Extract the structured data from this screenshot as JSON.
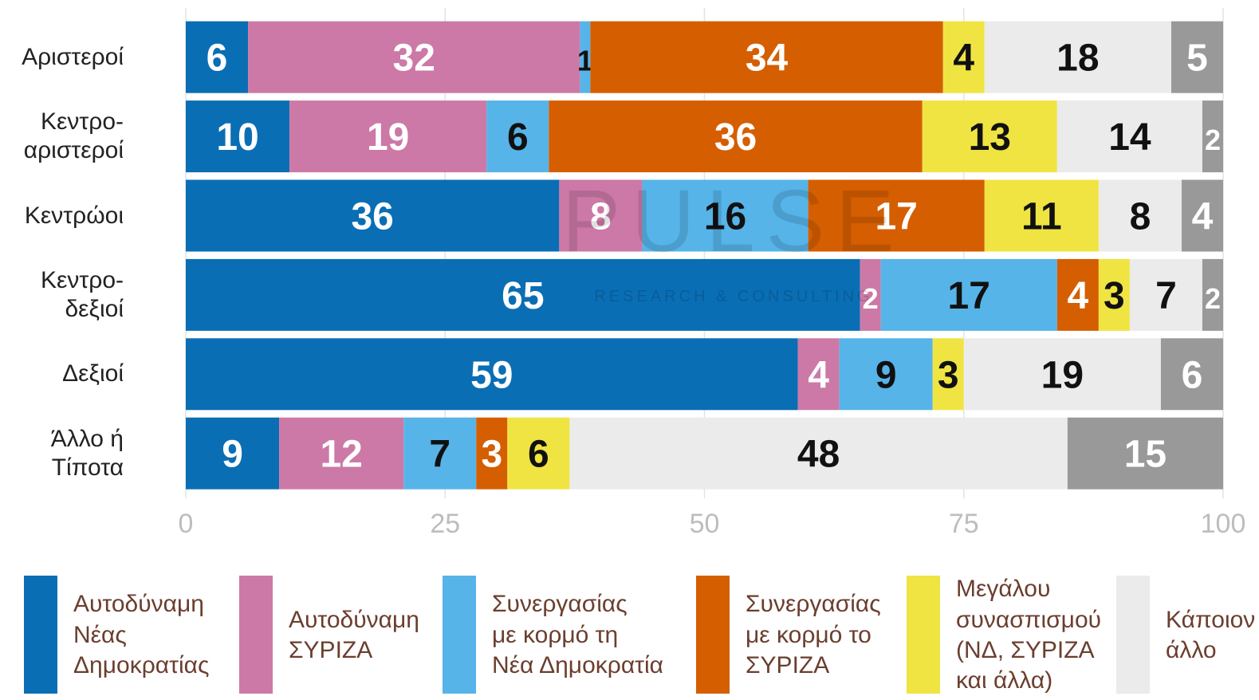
{
  "chart_data": {
    "type": "stacked_barh",
    "categories": [
      "Αριστεροί",
      "Κεντρο-\nαριστεροί",
      "Κεντρώοι",
      "Κεντρο-\nδεξιοί",
      "Δεξιοί",
      "Άλλο ή\nΤίποτα"
    ],
    "series": [
      {
        "name": "Αυτοδύναμη\nΝέας\nΔημοκρατίας",
        "color": "#0a6eb4",
        "label_color": "#ffffff",
        "values": [
          6,
          10,
          36,
          65,
          59,
          9
        ]
      },
      {
        "name": "Αυτοδύναμη\nΣΥΡΙΖΑ",
        "color": "#cc79a7",
        "label_color": "#ffffff",
        "values": [
          32,
          19,
          8,
          2,
          4,
          12
        ]
      },
      {
        "name": "Συνεργασίας\nμε κορμό τη\nΝέα Δημοκρατία",
        "color": "#56b4e9",
        "label_color": "#111111",
        "values": [
          1,
          6,
          16,
          17,
          9,
          7
        ]
      },
      {
        "name": "Συνεργασίας\nμε κορμό το\nΣΥΡΙΖΑ",
        "color": "#d55e00",
        "label_color": "#ffffff",
        "values": [
          34,
          36,
          17,
          4,
          null,
          3
        ]
      },
      {
        "name": "Μεγάλου\nσυνασπισμού\n(ΝΔ, ΣΥΡΙΖΑ\nκαι άλλα)",
        "color": "#f0e442",
        "label_color": "#111111",
        "values": [
          4,
          13,
          11,
          3,
          3,
          6
        ]
      },
      {
        "name": "Κάποιον\nάλλο",
        "color": "#ebebeb",
        "label_color": "#111111",
        "values": [
          18,
          14,
          8,
          7,
          19,
          48
        ]
      },
      {
        "color": "#999999",
        "label_color": "#ffffff",
        "values": [
          5,
          2,
          4,
          2,
          6,
          15
        ]
      }
    ],
    "xlim": [
      0,
      100
    ],
    "xticks": [
      0,
      25,
      50,
      75,
      100
    ],
    "grid": true,
    "watermark": [
      "PULSE",
      "RESEARCH & CONSULTING"
    ]
  }
}
